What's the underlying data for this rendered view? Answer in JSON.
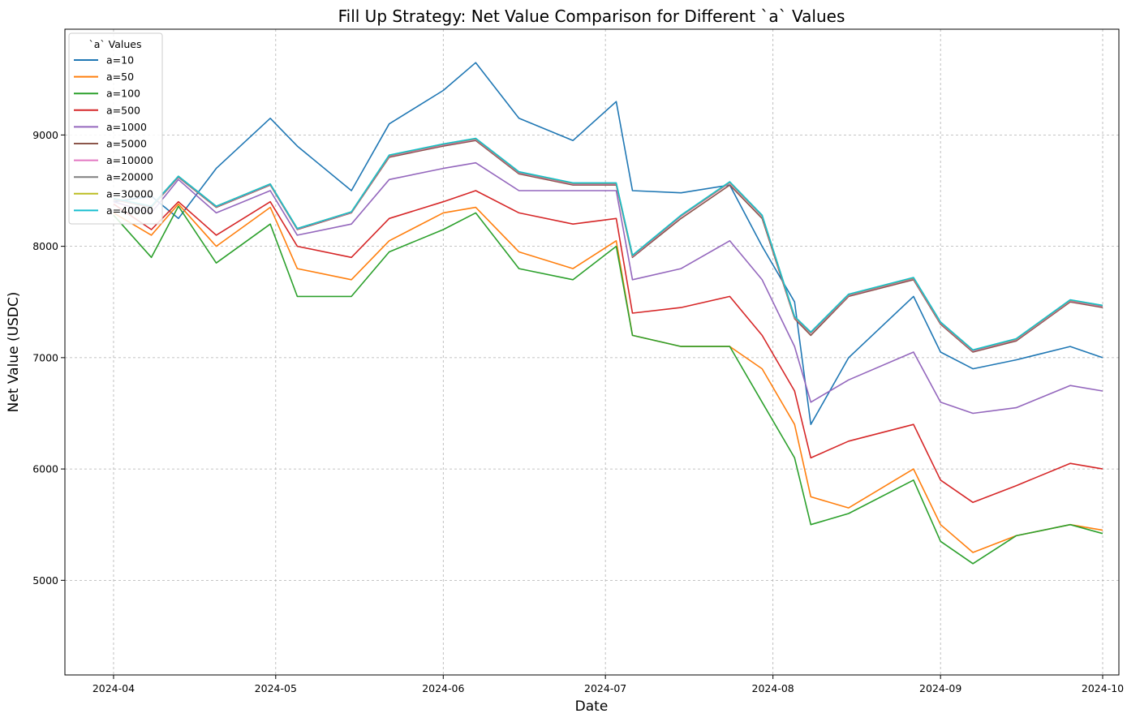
{
  "chart_data": {
    "type": "line",
    "title": "Fill Up Strategy: Net Value Comparison for Different `a` Values",
    "xlabel": "Date",
    "ylabel": "Net Value (USDC)",
    "x_range": [
      "2024-03-23",
      "2024-10-04"
    ],
    "ylim": [
      4150,
      9950
    ],
    "grid": true,
    "legend_title": "`a` Values",
    "legend_position": "top-left",
    "x_ticks": [
      "2024-04",
      "2024-05",
      "2024-06",
      "2024-07",
      "2024-08",
      "2024-09",
      "2024-10"
    ],
    "y_ticks": [
      5000,
      6000,
      7000,
      8000,
      9000
    ],
    "x": [
      "2024-04-01",
      "2024-04-08",
      "2024-04-13",
      "2024-04-20",
      "2024-04-30",
      "2024-05-05",
      "2024-05-15",
      "2024-05-22",
      "2024-06-01",
      "2024-06-07",
      "2024-06-15",
      "2024-06-25",
      "2024-07-03",
      "2024-07-06",
      "2024-07-15",
      "2024-07-24",
      "2024-07-30",
      "2024-08-05",
      "2024-08-08",
      "2024-08-15",
      "2024-08-27",
      "2024-09-01",
      "2024-09-07",
      "2024-09-15",
      "2024-09-25",
      "2024-10-01"
    ],
    "series": [
      {
        "name": "a=10",
        "color": "#1f77b4",
        "values": [
          8400,
          8450,
          8250,
          8700,
          9150,
          8900,
          8500,
          9100,
          9400,
          9650,
          9150,
          8950,
          9300,
          8500,
          8480,
          8550,
          8000,
          7500,
          6400,
          7000,
          7550,
          7050,
          6900,
          6980,
          7100,
          7000
        ]
      },
      {
        "name": "a=50",
        "color": "#ff7f0e",
        "values": [
          8300,
          8100,
          8380,
          8000,
          8350,
          7800,
          7700,
          8050,
          8300,
          8350,
          7950,
          7800,
          8050,
          7200,
          7100,
          7100,
          6900,
          6400,
          5750,
          5650,
          6000,
          5500,
          5250,
          5400,
          5500,
          5450
        ]
      },
      {
        "name": "a=100",
        "color": "#2ca02c",
        "values": [
          8280,
          7900,
          8360,
          7850,
          8200,
          7550,
          7550,
          7950,
          8150,
          8300,
          7800,
          7700,
          8000,
          7200,
          7100,
          7100,
          6600,
          6100,
          5500,
          5600,
          5900,
          5350,
          5150,
          5400,
          5500,
          5420
        ]
      },
      {
        "name": "a=500",
        "color": "#d62728",
        "values": [
          8380,
          8150,
          8400,
          8100,
          8400,
          8000,
          7900,
          8250,
          8400,
          8500,
          8300,
          8200,
          8250,
          7400,
          7450,
          7550,
          7200,
          6700,
          6100,
          6250,
          6400,
          5900,
          5700,
          5850,
          6050,
          6000
        ]
      },
      {
        "name": "a=1000",
        "color": "#9467bd",
        "values": [
          8400,
          8300,
          8600,
          8300,
          8500,
          8100,
          8200,
          8600,
          8700,
          8750,
          8500,
          8500,
          8500,
          7700,
          7800,
          8050,
          7700,
          7100,
          6600,
          6800,
          7050,
          6600,
          6500,
          6550,
          6750,
          6700
        ]
      },
      {
        "name": "a=5000",
        "color": "#8c564b",
        "values": [
          8420,
          8350,
          8620,
          8350,
          8550,
          8150,
          8300,
          8800,
          8900,
          8950,
          8650,
          8550,
          8550,
          7900,
          8250,
          8550,
          8250,
          7350,
          7200,
          7550,
          7700,
          7300,
          7050,
          7150,
          7500,
          7450
        ]
      },
      {
        "name": "a=10000",
        "color": "#e377c2",
        "values": [
          8425,
          8355,
          8625,
          8355,
          8555,
          8155,
          8305,
          8810,
          8910,
          8960,
          8660,
          8560,
          8560,
          7910,
          8270,
          8570,
          8270,
          7360,
          7220,
          7560,
          7710,
          7310,
          7060,
          7160,
          7510,
          7460
        ]
      },
      {
        "name": "a=20000",
        "color": "#7f7f7f",
        "values": [
          8428,
          8358,
          8628,
          8358,
          8558,
          8158,
          8308,
          8815,
          8915,
          8965,
          8665,
          8565,
          8565,
          7915,
          8275,
          8575,
          8275,
          7365,
          7225,
          7565,
          7715,
          7315,
          7065,
          7165,
          7515,
          7465
        ]
      },
      {
        "name": "a=30000",
        "color": "#bcbd22",
        "values": [
          8430,
          8360,
          8630,
          8360,
          8560,
          8160,
          8310,
          8818,
          8918,
          8968,
          8668,
          8568,
          8568,
          7918,
          8278,
          8578,
          8278,
          7368,
          7228,
          7568,
          7718,
          7318,
          7068,
          7168,
          7518,
          7468
        ]
      },
      {
        "name": "a=40000",
        "color": "#17becf",
        "values": [
          8430,
          8360,
          8630,
          8360,
          8560,
          8160,
          8310,
          8820,
          8920,
          8970,
          8670,
          8570,
          8570,
          7920,
          8280,
          8580,
          8280,
          7370,
          7230,
          7570,
          7720,
          7320,
          7070,
          7170,
          7520,
          7470
        ]
      }
    ]
  }
}
